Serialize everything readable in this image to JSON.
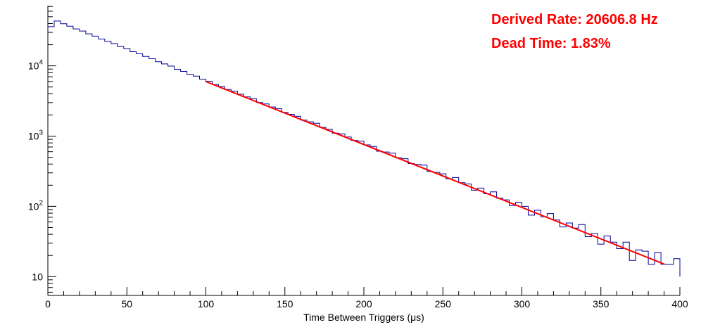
{
  "annotations": {
    "derived_rate_line": "Derived Rate: 20606.8 Hz",
    "dead_time_line": "Dead Time: 1.83%",
    "derived_rate_hz": 20606.8,
    "dead_time_pct": 1.83,
    "color": "#ff0000"
  },
  "chart_data": {
    "type": "line",
    "subtype": "histogram-step-log-y",
    "title": "",
    "xlabel": "Time Between Triggers (μs)",
    "ylabel": "",
    "xlim": [
      0,
      400
    ],
    "ylim_log": [
      5.4,
      72000
    ],
    "x_ticks": [
      0,
      50,
      100,
      150,
      200,
      250,
      300,
      350,
      400
    ],
    "x_minor_tick_step": 10,
    "y_ticks": [
      10,
      100,
      1000,
      10000
    ],
    "grid": false,
    "legend_position": "none",
    "background": "#ffffff",
    "series": [
      {
        "name": "time-between-triggers-histogram",
        "color": "#000099",
        "x_start": 0,
        "bin_width_us": 4,
        "counts": [
          36100,
          43500,
          39700,
          36700,
          33600,
          31350,
          28570,
          26480,
          24100,
          22360,
          20720,
          18880,
          17600,
          15900,
          14850,
          13600,
          12620,
          11440,
          10660,
          9915,
          8935,
          8340,
          7595,
          7155,
          6470,
          6030,
          5410,
          5090,
          4610,
          4360,
          3950,
          3610,
          3400,
          3010,
          2870,
          2600,
          2465,
          2175,
          2045,
          1910,
          1690,
          1600,
          1520,
          1330,
          1255,
          1105,
          1080,
          970,
          870,
          850,
          749,
          713,
          609,
          594,
          572,
          491,
          477,
          407,
          396,
          386,
          313,
          305,
          291,
          247,
          257,
          217,
          208,
          170,
          182,
          151,
          161,
          131,
          124,
          103,
          114,
          100,
          75,
          88,
          71,
          79,
          64,
          51,
          58,
          49,
          55,
          37,
          41,
          29,
          38,
          31,
          25,
          31,
          17,
          24,
          23,
          15,
          22,
          15,
          15,
          18,
          10
        ]
      },
      {
        "name": "exponential-fit",
        "color": "#ff0000",
        "fit_model": "A*exp(-t/tau)",
        "tau_us": 48.5,
        "x_start": 100,
        "x_end": 390,
        "y_start": 5970,
        "y_end": 15.1
      }
    ]
  }
}
